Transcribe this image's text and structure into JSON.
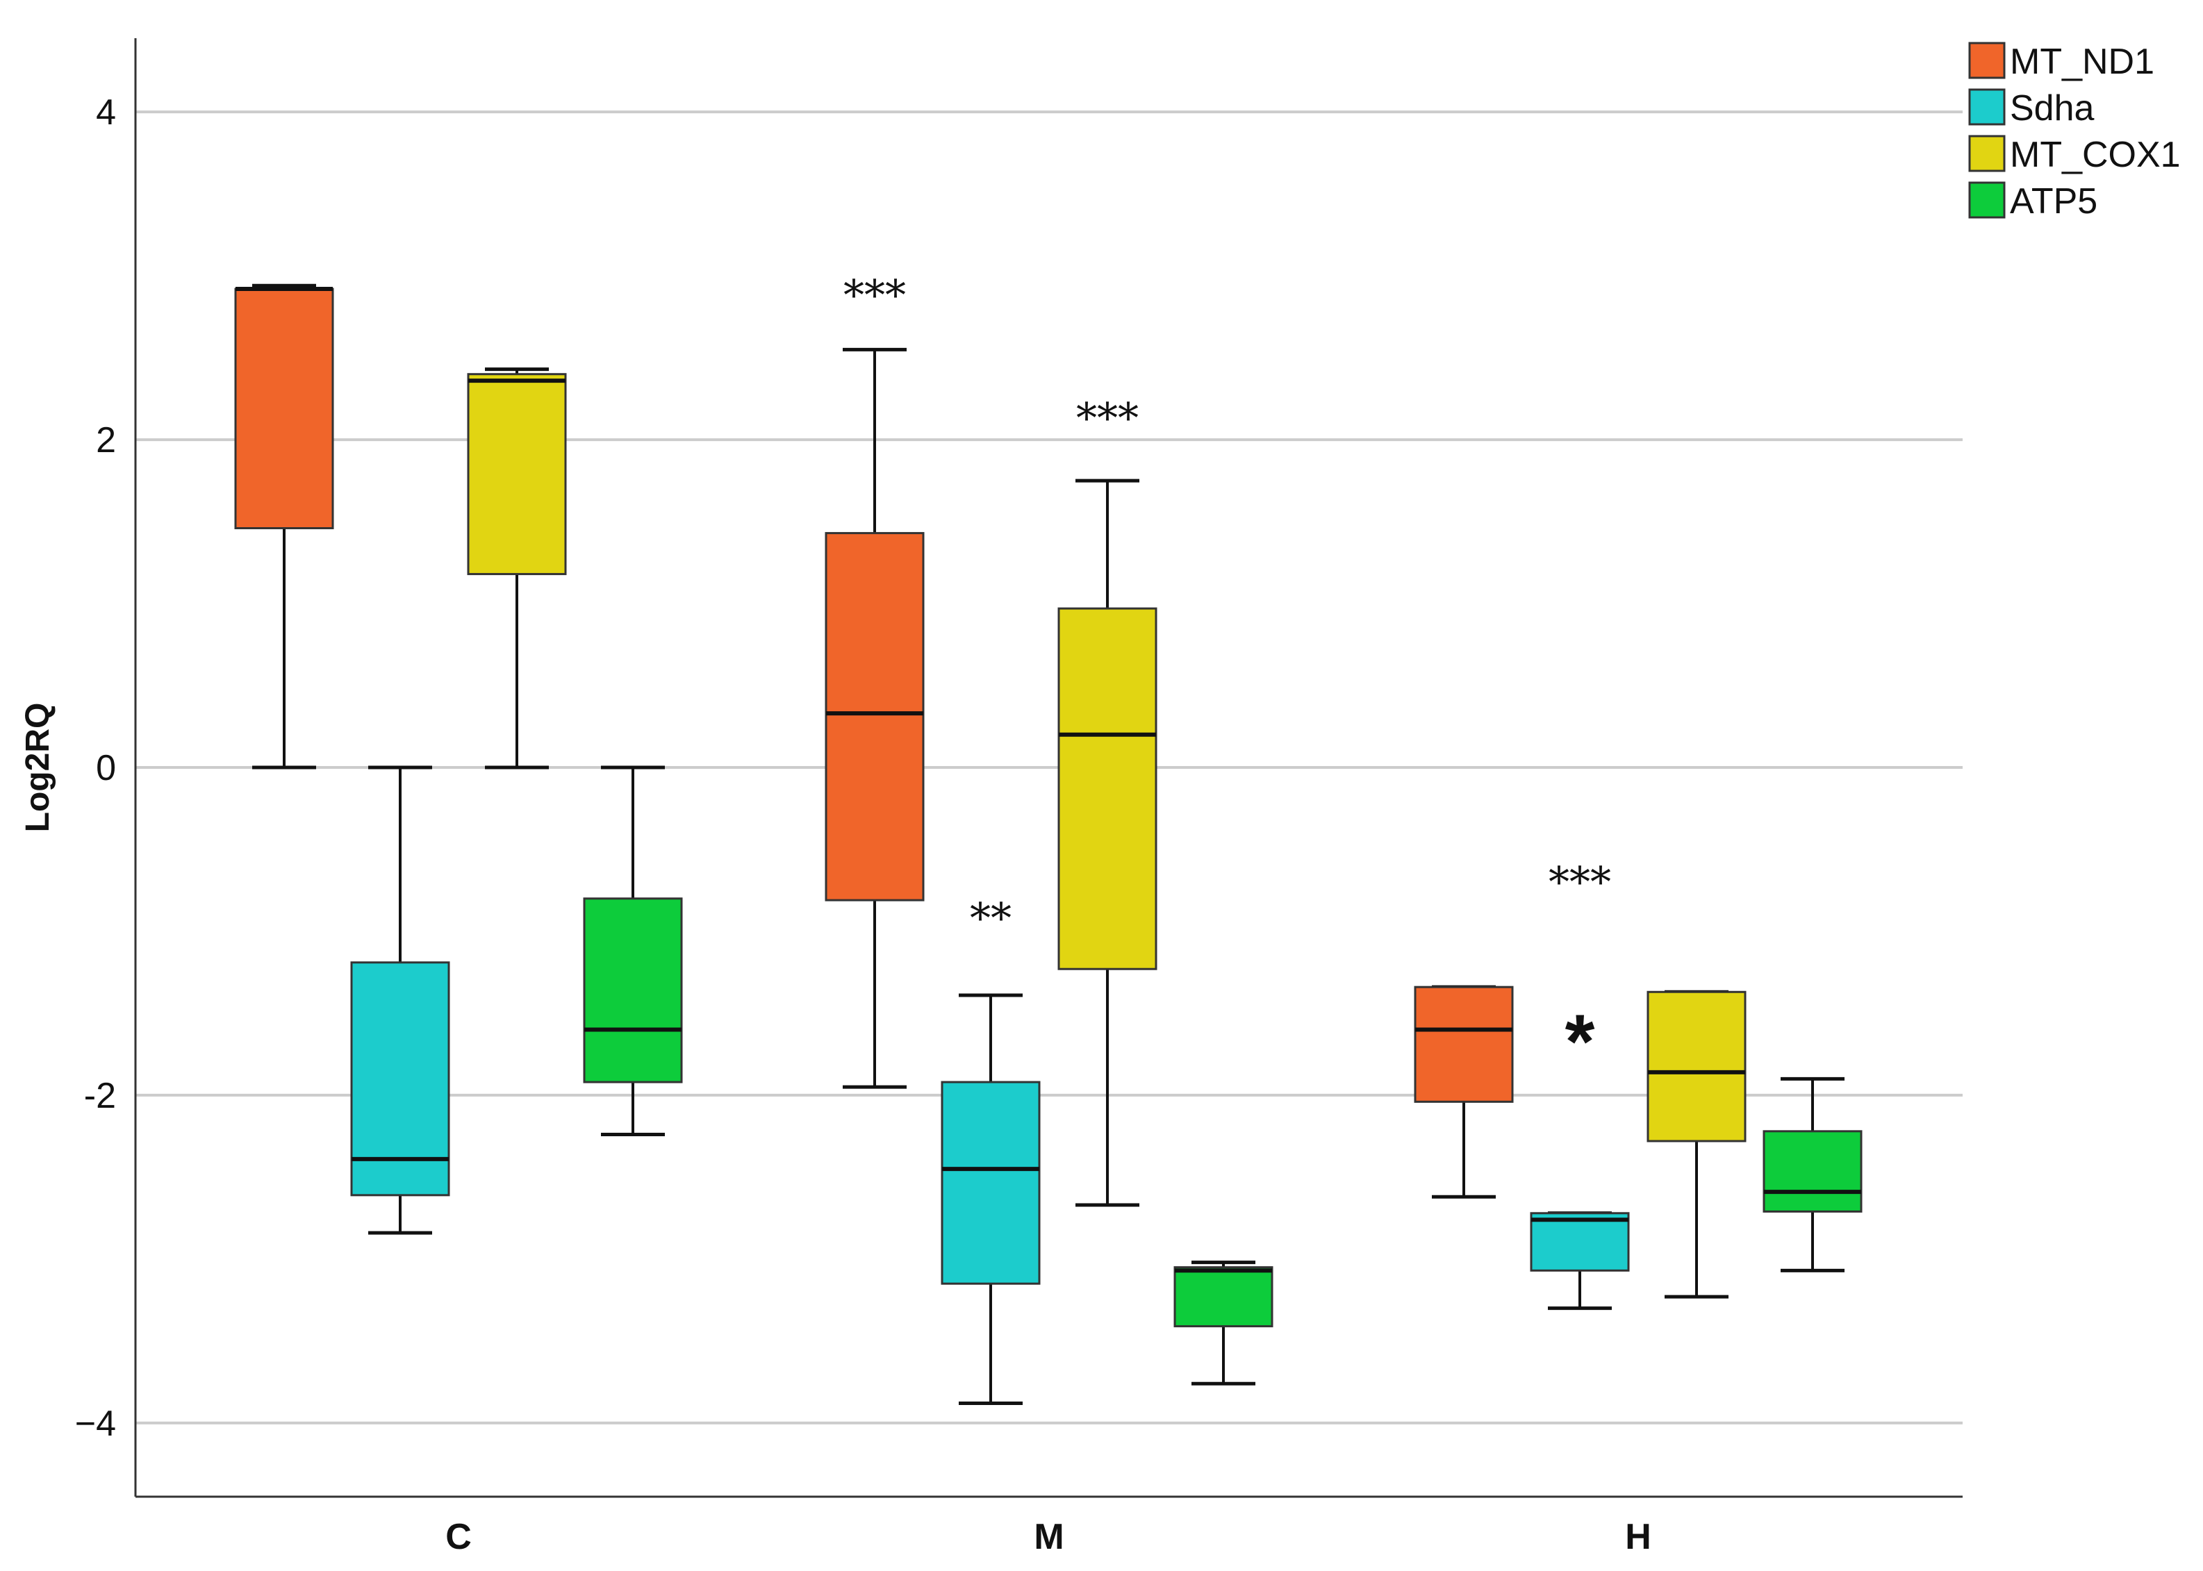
{
  "chart_data": {
    "type": "boxplot",
    "title": "",
    "xlabel": "",
    "ylabel": "Log2RQ",
    "ylim": [
      -4.45,
      4.45
    ],
    "yticks": [
      4,
      2,
      0,
      -2,
      -4
    ],
    "ytick_labels": [
      "4",
      "2",
      "0",
      "-2",
      "−4"
    ],
    "grid": true,
    "legend_position": "top-right",
    "categories": [
      "C",
      "M",
      "H"
    ],
    "series": [
      {
        "name": "MT_ND1",
        "color": "#f0652a",
        "boxes": [
          {
            "whisker_low": 0.0,
            "q1": 1.46,
            "median": 2.92,
            "q3": 2.92,
            "whisker_high": 2.94
          },
          {
            "whisker_low": -1.95,
            "q1": -0.81,
            "median": 0.33,
            "q3": 1.43,
            "whisker_high": 2.55
          },
          {
            "whisker_low": -2.62,
            "q1": -2.04,
            "median": -1.6,
            "q3": -1.34,
            "whisker_high": -1.34
          }
        ]
      },
      {
        "name": "Sdha",
        "color": "#1ccccc",
        "boxes": [
          {
            "whisker_low": -2.84,
            "q1": -2.61,
            "median": -2.39,
            "q3": -1.19,
            "whisker_high": 0.0
          },
          {
            "whisker_low": -3.88,
            "q1": -3.15,
            "median": -2.45,
            "q3": -1.92,
            "whisker_high": -1.39
          },
          {
            "whisker_low": -3.3,
            "q1": -3.07,
            "median": -2.76,
            "q3": -2.72,
            "whisker_high": -2.72
          }
        ]
      },
      {
        "name": "MT_COX1",
        "color": "#e1d512",
        "boxes": [
          {
            "whisker_low": 0.0,
            "q1": 1.18,
            "median": 2.36,
            "q3": 2.4,
            "whisker_high": 2.43
          },
          {
            "whisker_low": -2.67,
            "q1": -1.23,
            "median": 0.2,
            "q3": 0.97,
            "whisker_high": 1.75
          },
          {
            "whisker_low": -3.23,
            "q1": -2.28,
            "median": -1.86,
            "q3": -1.37,
            "whisker_high": -1.37
          }
        ]
      },
      {
        "name": "ATP5",
        "color": "#0dcc3b",
        "boxes": [
          {
            "whisker_low": -2.24,
            "q1": -1.92,
            "median": -1.6,
            "q3": -0.8,
            "whisker_high": 0.0
          },
          {
            "whisker_low": -3.76,
            "q1": -3.41,
            "median": -3.07,
            "q3": -3.05,
            "whisker_high": -3.02
          },
          {
            "whisker_low": -3.07,
            "q1": -2.71,
            "median": -2.59,
            "q3": -2.22,
            "whisker_high": -1.9
          }
        ]
      }
    ],
    "annotations": [
      {
        "text": "***",
        "category": "M",
        "series": "MT_ND1",
        "y": 2.9
      },
      {
        "text": "***",
        "category": "M",
        "series": "MT_COX1",
        "y": 2.15
      },
      {
        "text": "**",
        "category": "M",
        "series": "Sdha",
        "y": -0.9
      },
      {
        "text": "***",
        "category": "H",
        "series": "Sdha",
        "y": -0.68
      },
      {
        "text": "*",
        "category": "H",
        "series": "Sdha",
        "y": -1.6,
        "bold": true
      }
    ]
  }
}
